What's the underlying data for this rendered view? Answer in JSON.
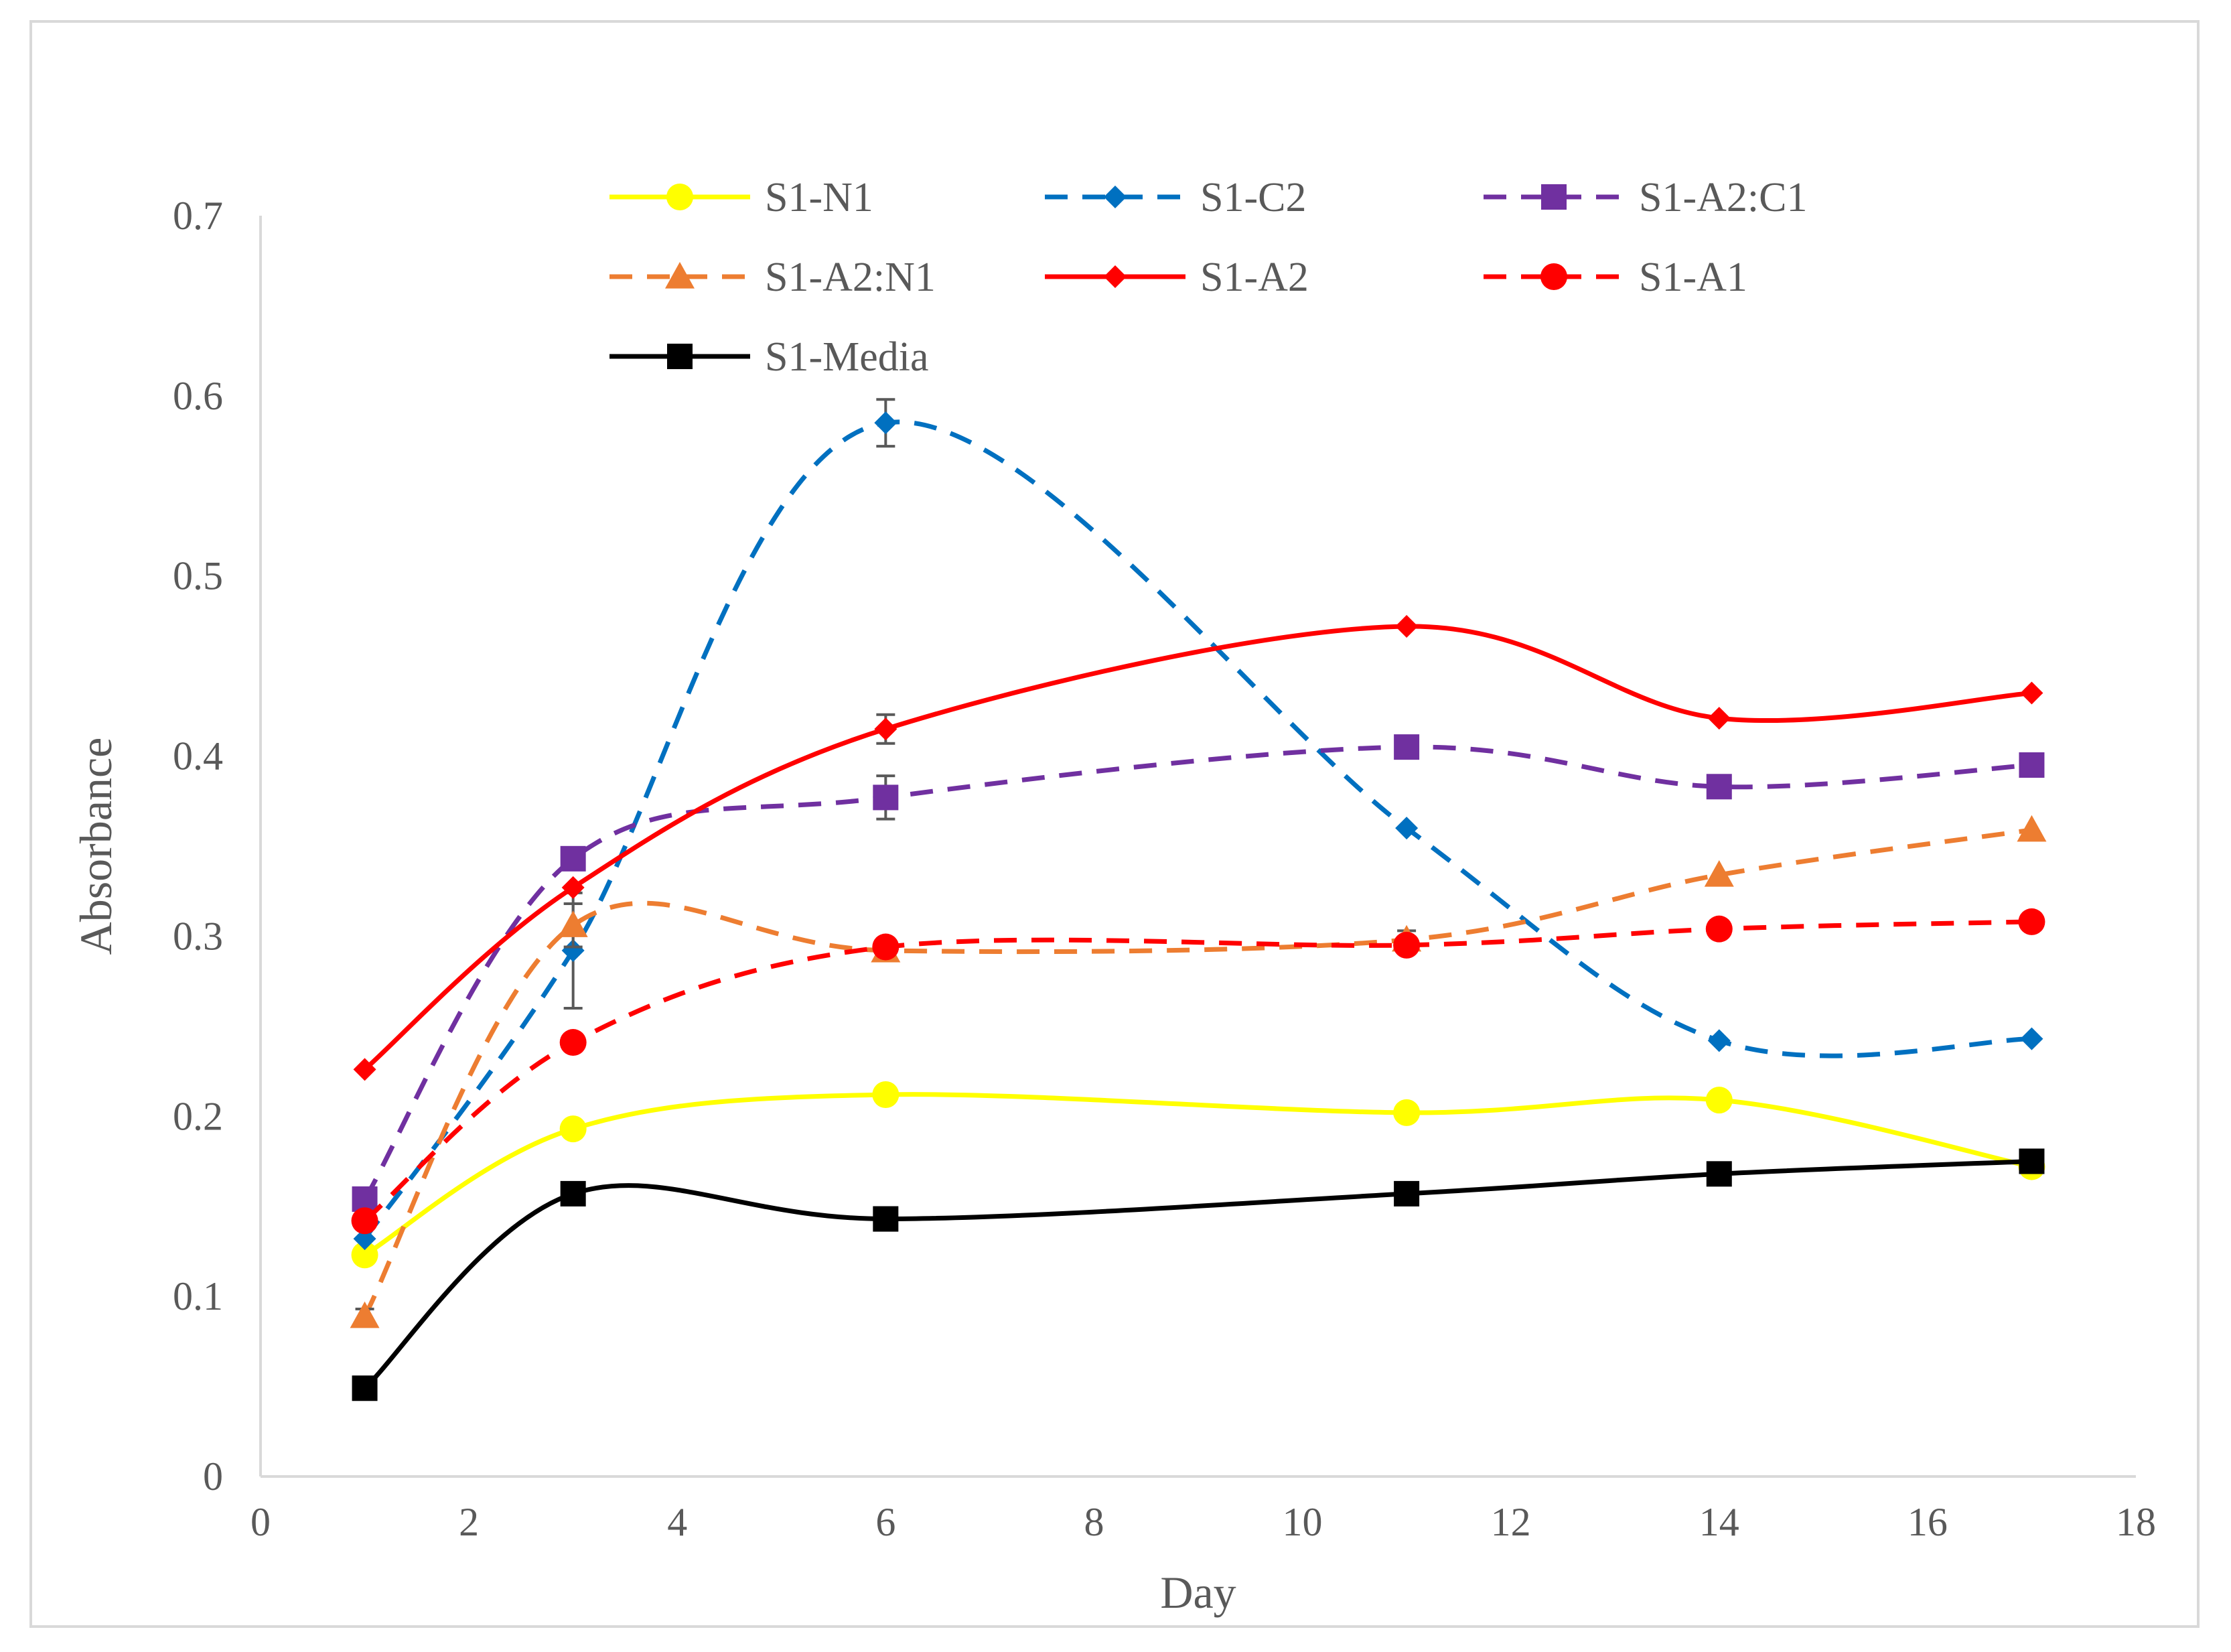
{
  "chart_data": {
    "type": "line",
    "title": "",
    "xlabel": "Day",
    "ylabel": "Absorbance",
    "xlim": [
      0,
      18
    ],
    "ylim": [
      0,
      0.7
    ],
    "xticks": [
      0,
      2,
      4,
      6,
      8,
      10,
      12,
      14,
      16,
      18
    ],
    "yticks": [
      0,
      0.1,
      0.2,
      0.3,
      0.4,
      0.5,
      0.6,
      0.7
    ],
    "xtick_labels": [
      "0",
      "2",
      "4",
      "6",
      "8",
      "10",
      "12",
      "14",
      "16",
      "18"
    ],
    "ytick_labels": [
      "0",
      "0.1",
      "0.2",
      "0.3",
      "0.4",
      "0.5",
      "0.6",
      "0.7"
    ],
    "grid": false,
    "legend_position": "top",
    "x": [
      1,
      3,
      6,
      11,
      14,
      17
    ],
    "series": [
      {
        "name": "S1-N1",
        "values": [
          0.123,
          0.193,
          0.212,
          0.202,
          0.209,
          0.172
        ],
        "errors": [
          0,
          0,
          0,
          0,
          0,
          0
        ],
        "color": "#ffff00",
        "dash": "solid",
        "marker": "circle"
      },
      {
        "name": "S1-C2",
        "values": [
          0.132,
          0.292,
          0.585,
          0.36,
          0.242,
          0.243
        ],
        "errors": [
          0,
          0.032,
          0.013,
          0,
          0,
          0
        ],
        "color": "#0070c0",
        "dash": "dashed",
        "marker": "diamond"
      },
      {
        "name": "S1-A2:C1",
        "values": [
          0.154,
          0.343,
          0.377,
          0.405,
          0.383,
          0.395
        ],
        "errors": [
          0,
          0,
          0.012,
          0.006,
          0,
          0
        ],
        "color": "#7030a0",
        "dash": "dashed",
        "marker": "square"
      },
      {
        "name": "S1-A2:N1",
        "values": [
          0.089,
          0.306,
          0.292,
          0.298,
          0.334,
          0.359
        ],
        "errors": [
          0.004,
          0.012,
          0,
          0.005,
          0,
          0
        ],
        "color": "#ed7d31",
        "dash": "dashed",
        "marker": "triangle"
      },
      {
        "name": "S1-A2",
        "values": [
          0.226,
          0.327,
          0.415,
          0.472,
          0.421,
          0.435
        ],
        "errors": [
          0,
          0,
          0.008,
          0,
          0,
          0
        ],
        "color": "#ff0000",
        "dash": "solid",
        "marker": "diamond"
      },
      {
        "name": "S1-A1",
        "values": [
          0.142,
          0.241,
          0.294,
          0.295,
          0.304,
          0.308
        ],
        "errors": [
          0,
          0,
          0,
          0,
          0,
          0
        ],
        "color": "#ff0000",
        "dash": "dashed",
        "marker": "circle"
      },
      {
        "name": "S1-Media",
        "values": [
          0.049,
          0.157,
          0.143,
          0.157,
          0.168,
          0.175
        ],
        "errors": [
          0,
          0,
          0,
          0,
          0,
          0
        ],
        "color": "#000000",
        "dash": "solid",
        "marker": "square"
      }
    ]
  }
}
